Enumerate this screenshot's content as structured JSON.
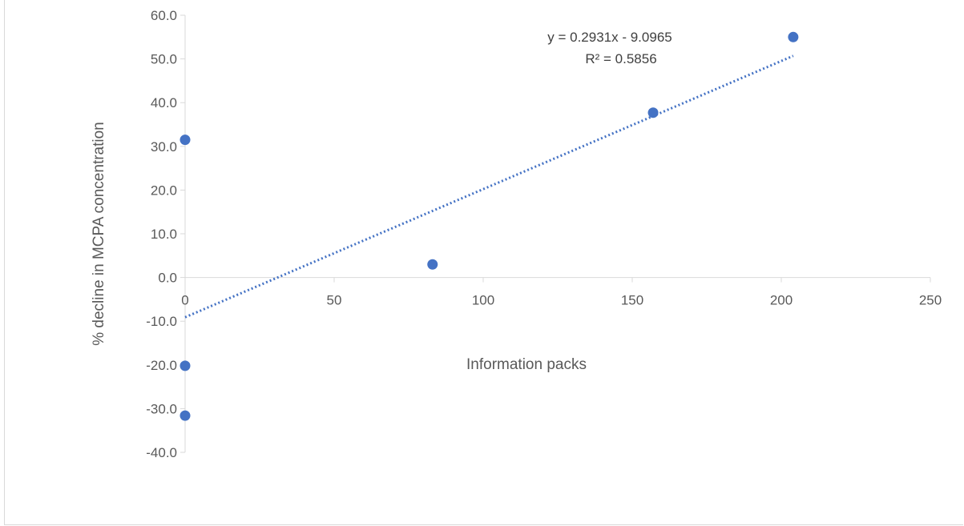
{
  "chart_data": {
    "type": "scatter",
    "title": "",
    "xlabel": "Information packs",
    "ylabel": "% decline in MCPA concentration",
    "xlim": [
      0,
      250
    ],
    "ylim": [
      -40,
      60
    ],
    "x_ticks": [
      0,
      50,
      100,
      150,
      200,
      250
    ],
    "x_tick_labels": [
      "0",
      "50",
      "100",
      "150",
      "200",
      "250"
    ],
    "y_ticks": [
      60,
      50,
      40,
      30,
      20,
      10,
      0,
      -10,
      -20,
      -30,
      -40
    ],
    "y_tick_labels": [
      "60.0",
      "50.0",
      "40.0",
      "30.0",
      "20.0",
      "10.0",
      "0.0",
      "-10.0",
      "-20.0",
      "-30.0",
      "-40.0"
    ],
    "grid": false,
    "legend": "none",
    "series": [
      {
        "color": "#4472c4",
        "points": [
          {
            "x": 0,
            "y": 31.5
          },
          {
            "x": 0,
            "y": -20.2
          },
          {
            "x": 0,
            "y": -31.6
          },
          {
            "x": 83,
            "y": 3.0
          },
          {
            "x": 157,
            "y": 37.7
          },
          {
            "x": 204,
            "y": 55.0
          }
        ]
      }
    ],
    "trendline": {
      "type": "linear",
      "style": "dotted",
      "color": "#4472c4",
      "slope": 0.2931,
      "intercept": -9.0965,
      "x_range": [
        0,
        204
      ]
    },
    "annotations": {
      "equation": "y = 0.2931x - 9.0965",
      "r_squared": "R² = 0.5856"
    }
  }
}
